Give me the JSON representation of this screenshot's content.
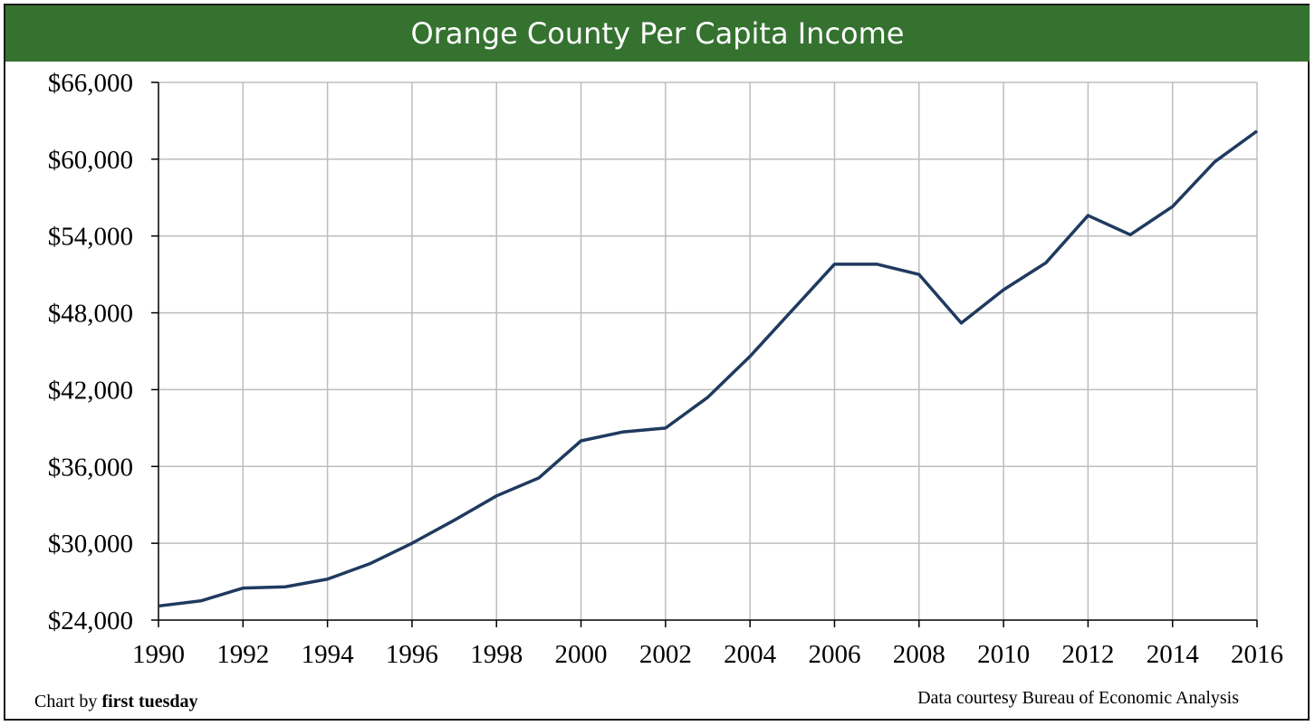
{
  "chart_data": {
    "type": "line",
    "title": "Orange County Per Capita Income",
    "xlabel": "",
    "ylabel": "",
    "x": [
      1990,
      1991,
      1992,
      1993,
      1994,
      1995,
      1996,
      1997,
      1998,
      1999,
      2000,
      2001,
      2002,
      2003,
      2004,
      2005,
      2006,
      2007,
      2008,
      2009,
      2010,
      2011,
      2012,
      2013,
      2014,
      2015,
      2016
    ],
    "series": [
      {
        "values": [
          25100,
          25500,
          26500,
          26600,
          27200,
          28400,
          30000,
          31800,
          33700,
          35100,
          38000,
          38700,
          39000,
          41400,
          44600,
          48200,
          51800,
          51800,
          51000,
          47200,
          49800,
          51900,
          55600,
          54100,
          56300,
          59800,
          62200
        ]
      }
    ],
    "xlim": [
      1990,
      2016
    ],
    "ylim": [
      24000,
      66000
    ],
    "x_ticks": [
      "1990",
      "1992",
      "1994",
      "1996",
      "1998",
      "2000",
      "2002",
      "2004",
      "2006",
      "2008",
      "2010",
      "2012",
      "2014",
      "2016"
    ],
    "y_ticks": [
      "$24,000",
      "$30,000",
      "$36,000",
      "$42,000",
      "$48,000",
      "$54,000",
      "$60,000",
      "$66,000"
    ],
    "grid": true,
    "line_color": "#1f3a5f",
    "title_bg_color": "#357230"
  },
  "credits": {
    "left_prefix": "Chart by ",
    "left_brand": "first tuesday",
    "right": "Data courtesy Bureau of Economic Analysis"
  }
}
